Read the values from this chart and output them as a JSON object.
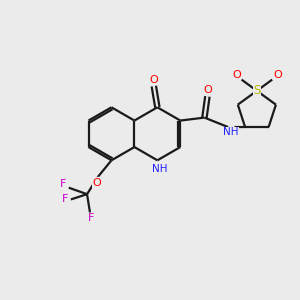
{
  "background_color": "#ebebeb",
  "bond_color": "#1a1a1a",
  "atom_colors": {
    "O": "#ff0000",
    "N": "#2020ff",
    "S": "#b8b800",
    "F": "#cc00cc",
    "C": "#1a1a1a"
  },
  "figsize": [
    3.0,
    3.0
  ],
  "dpi": 100
}
